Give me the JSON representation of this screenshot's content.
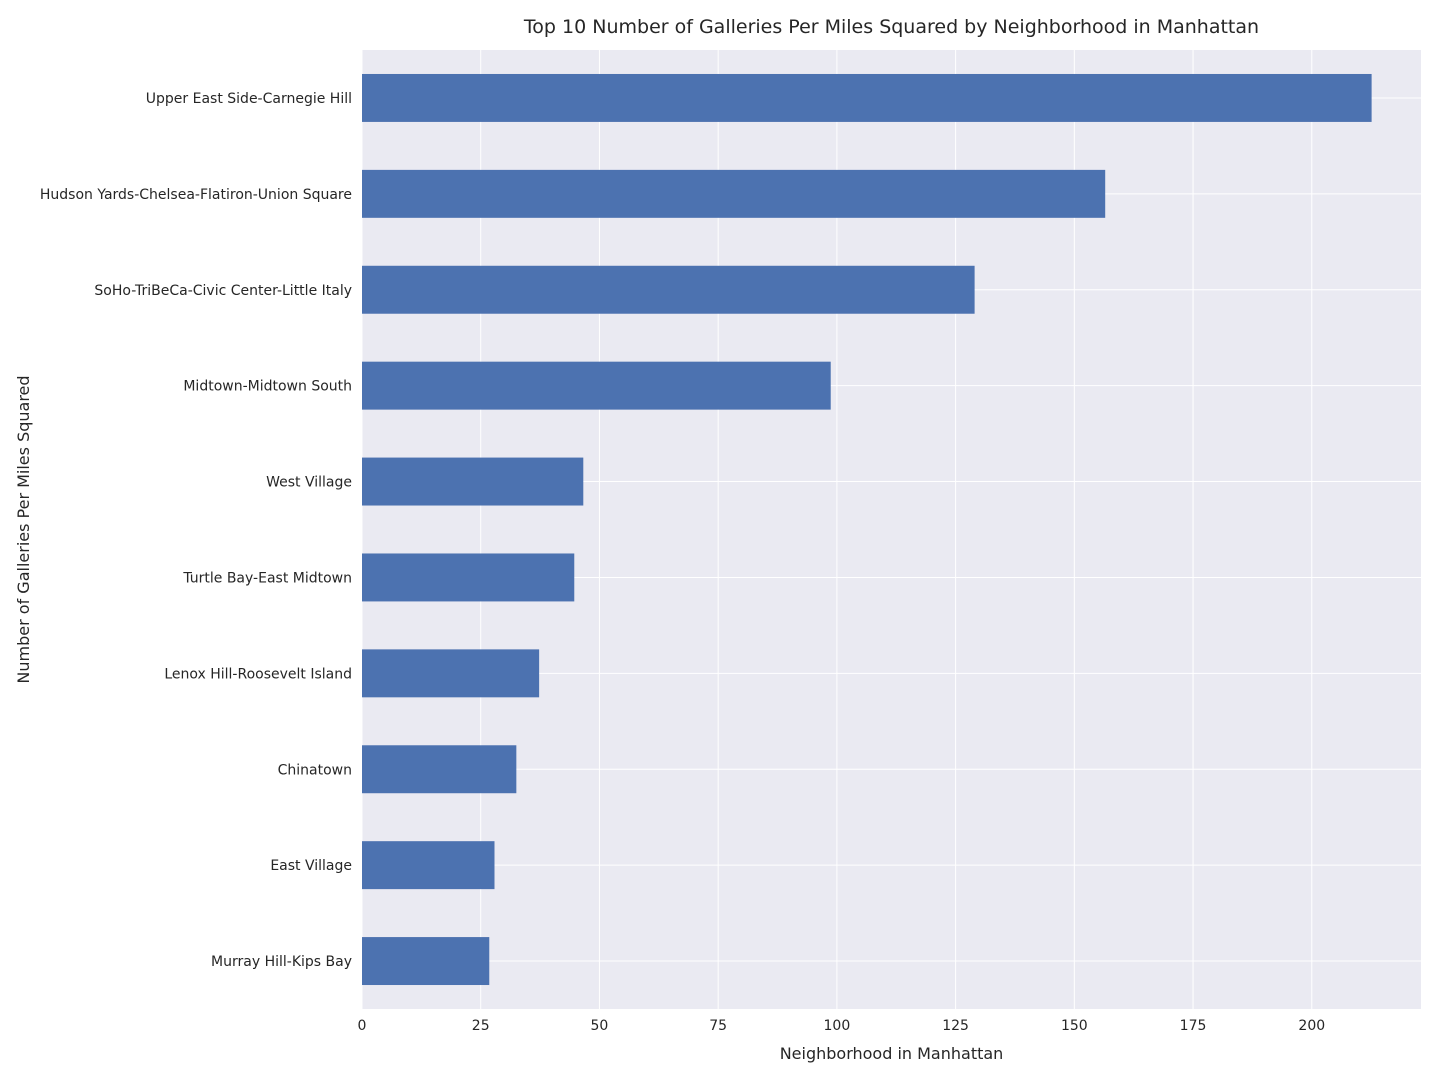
{
  "chart_data": {
    "type": "bar",
    "orientation": "horizontal",
    "title": "Top 10 Number of Galleries Per Miles Squared by Neighborhood in Manhattan",
    "xlabel": "Neighborhood in Manhattan",
    "ylabel": "Number of Galleries Per Miles Squared",
    "categories": [
      "Upper East Side-Carnegie Hill",
      "Hudson Yards-Chelsea-Flatiron-Union Square",
      "SoHo-TriBeCa-Civic Center-Little Italy",
      "Midtown-Midtown South",
      "West Village",
      "Turtle Bay-East Midtown",
      "Lenox Hill-Roosevelt Island",
      "Chinatown",
      "East Village",
      "Murray Hill-Kips Bay"
    ],
    "values": [
      212.6,
      156.5,
      129.0,
      98.7,
      46.6,
      44.7,
      37.3,
      32.5,
      27.9,
      26.8
    ],
    "xticks": [
      "0",
      "25",
      "50",
      "75",
      "100",
      "125",
      "150",
      "175",
      "200"
    ],
    "xlim": [
      0,
      223
    ],
    "grid": true,
    "bar_color": "#4c72b0",
    "background_color": "#eaeaf2",
    "grid_color": "#ffffff"
  }
}
